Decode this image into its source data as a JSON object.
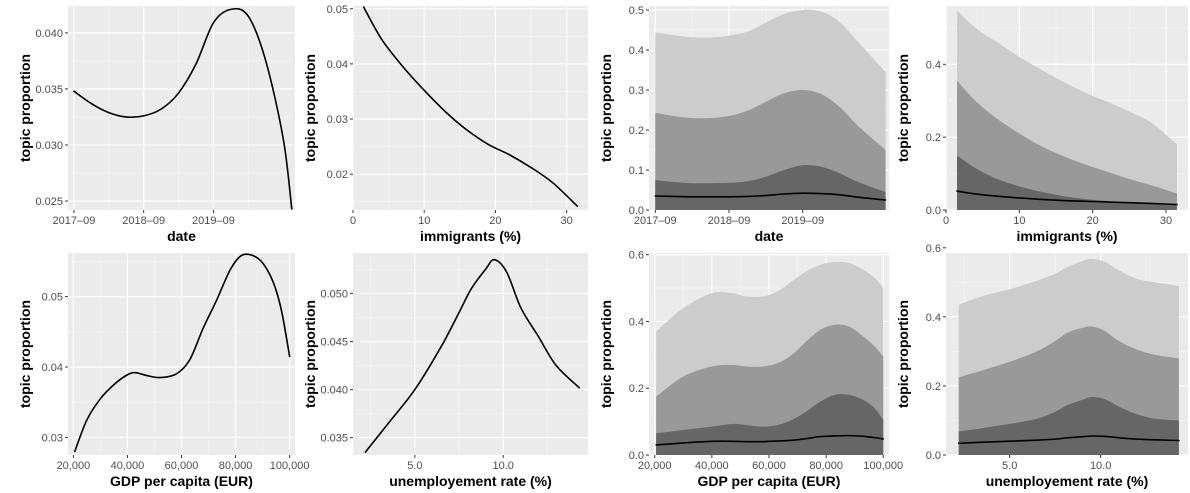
{
  "figure": {
    "panel_background": "#ebebeb",
    "grid_major_color": "#ffffff",
    "grid_minor_color": "#f5f5f5",
    "line_color": "#000000",
    "band_colors": [
      "#cccccc",
      "#999999",
      "#666666"
    ]
  },
  "chart_data": [
    {
      "type": "line",
      "xlabel": "date",
      "ylabel": "topic proportion",
      "x_is_date": true,
      "xlim": [
        "2017-08-01",
        "2020-11-01"
      ],
      "ylim": [
        0.0242,
        0.0424
      ],
      "xticks": [
        "2017-09-01",
        "2018-09-01",
        "2019-09-01"
      ],
      "xtick_labels": [
        "2017–09",
        "2018–09",
        "2019–09"
      ],
      "yticks": [
        0.025,
        0.03,
        0.035,
        0.04
      ],
      "ytick_labels": [
        "0.025",
        "0.030",
        "0.035",
        "0.040"
      ],
      "series": [
        {
          "x": [
            "2017-09-01",
            "2017-12-01",
            "2018-03-01",
            "2018-06-01",
            "2018-09-01",
            "2018-12-01",
            "2019-03-01",
            "2019-06-01",
            "2019-09-01",
            "2019-12-01",
            "2020-03-01",
            "2020-06-01",
            "2020-09-01",
            "2020-10-15"
          ],
          "y": [
            0.0348,
            0.0337,
            0.0329,
            0.0325,
            0.0326,
            0.0332,
            0.0346,
            0.0372,
            0.0409,
            0.0421,
            0.0415,
            0.0375,
            0.0305,
            0.0243
          ]
        }
      ]
    },
    {
      "type": "line",
      "xlabel": "immigrants (%)",
      "ylabel": "topic proportion",
      "xlim": [
        0,
        33
      ],
      "ylim": [
        0.0135,
        0.0505
      ],
      "xticks": [
        0,
        10,
        20,
        30
      ],
      "xtick_labels": [
        "0",
        "10",
        "20",
        "30"
      ],
      "yticks": [
        0.02,
        0.03,
        0.04,
        0.05
      ],
      "ytick_labels": [
        "0.02",
        "0.03",
        "0.04",
        "0.05"
      ],
      "series": [
        {
          "x": [
            1.5,
            4,
            7,
            10,
            13,
            16,
            19,
            22,
            25,
            28,
            31.5
          ],
          "y": [
            0.0503,
            0.0445,
            0.0395,
            0.0352,
            0.0313,
            0.028,
            0.0254,
            0.0235,
            0.0212,
            0.0185,
            0.0142
          ]
        }
      ]
    },
    {
      "type": "area",
      "xlabel": "date",
      "ylabel": "topic proportion",
      "x_is_date": true,
      "xlim": [
        "2017-08-01",
        "2020-11-01"
      ],
      "ylim": [
        0,
        0.51
      ],
      "xticks": [
        "2017-09-01",
        "2018-09-01",
        "2019-09-01"
      ],
      "xtick_labels": [
        "2017–09",
        "2018–09",
        "2019–09"
      ],
      "yticks": [
        0,
        0.1,
        0.2,
        0.3,
        0.4,
        0.5
      ],
      "ytick_labels": [
        "0.0",
        "0.1",
        "0.2",
        "0.3",
        "0.4",
        "0.5"
      ],
      "x": [
        "2017-09-01",
        "2017-12-01",
        "2018-03-01",
        "2018-06-01",
        "2018-09-01",
        "2018-12-01",
        "2019-03-01",
        "2019-06-01",
        "2019-09-01",
        "2019-12-01",
        "2020-03-01",
        "2020-06-01",
        "2020-10-15"
      ],
      "bands": [
        {
          "upper": [
            0.444,
            0.437,
            0.432,
            0.431,
            0.436,
            0.446,
            0.468,
            0.49,
            0.5,
            0.496,
            0.47,
            0.42,
            0.345
          ]
        },
        {
          "upper": [
            0.243,
            0.235,
            0.23,
            0.23,
            0.235,
            0.248,
            0.27,
            0.292,
            0.3,
            0.29,
            0.258,
            0.21,
            0.15
          ]
        },
        {
          "upper": [
            0.075,
            0.07,
            0.067,
            0.067,
            0.068,
            0.072,
            0.083,
            0.1,
            0.112,
            0.108,
            0.092,
            0.07,
            0.045
          ]
        }
      ],
      "series": [
        {
          "y": [
            0.035,
            0.034,
            0.033,
            0.033,
            0.033,
            0.034,
            0.036,
            0.04,
            0.042,
            0.041,
            0.038,
            0.032,
            0.025
          ]
        }
      ]
    },
    {
      "type": "area",
      "xlabel": "immigrants (%)",
      "ylabel": "topic proportion",
      "xlim": [
        0,
        33
      ],
      "ylim": [
        0,
        0.56
      ],
      "xticks": [
        0,
        10,
        20,
        30
      ],
      "xtick_labels": [
        "0",
        "10",
        "20",
        "30"
      ],
      "yticks": [
        0,
        0.2,
        0.4
      ],
      "ytick_labels": [
        "0.0",
        "0.2",
        "0.4"
      ],
      "x": [
        1.5,
        4,
        7,
        10,
        13,
        16,
        19,
        22,
        25,
        28,
        31.5
      ],
      "bands": [
        {
          "upper": [
            0.548,
            0.5,
            0.46,
            0.42,
            0.385,
            0.352,
            0.322,
            0.297,
            0.27,
            0.24,
            0.18
          ]
        },
        {
          "upper": [
            0.355,
            0.3,
            0.25,
            0.21,
            0.175,
            0.148,
            0.125,
            0.105,
            0.085,
            0.068,
            0.045
          ]
        },
        {
          "upper": [
            0.15,
            0.115,
            0.085,
            0.065,
            0.05,
            0.038,
            0.03,
            0.025,
            0.02,
            0.016,
            0.012
          ]
        }
      ],
      "series": [
        {
          "y": [
            0.052,
            0.044,
            0.038,
            0.033,
            0.029,
            0.026,
            0.024,
            0.022,
            0.02,
            0.018,
            0.015
          ]
        }
      ]
    },
    {
      "type": "line",
      "xlabel": "GDP per capita (EUR)",
      "ylabel": "topic proportion",
      "xlim": [
        18000,
        102000
      ],
      "ylim": [
        0.0275,
        0.0562
      ],
      "xticks": [
        20000,
        40000,
        60000,
        80000,
        100000
      ],
      "xtick_labels": [
        "20,000",
        "40,000",
        "60,000",
        "80,000",
        "100,000"
      ],
      "yticks": [
        0.03,
        0.04,
        0.05
      ],
      "ytick_labels": [
        "0.03",
        "0.04",
        "0.05"
      ],
      "series": [
        {
          "x": [
            20500,
            25000,
            30000,
            35000,
            40000,
            43000,
            47000,
            52000,
            58000,
            63000,
            68000,
            73000,
            78000,
            82000,
            86000,
            90000,
            94000,
            97000,
            100000
          ],
          "y": [
            0.028,
            0.0325,
            0.0355,
            0.0375,
            0.0389,
            0.0392,
            0.0388,
            0.0385,
            0.039,
            0.041,
            0.0455,
            0.0495,
            0.0538,
            0.0558,
            0.0559,
            0.0548,
            0.052,
            0.048,
            0.0415
          ]
        }
      ]
    },
    {
      "type": "line",
      "xlabel": "unemployement rate (%)",
      "ylabel": "topic proportion",
      "xlim": [
        1.5,
        14.8
      ],
      "ylim": [
        0.0332,
        0.0542
      ],
      "xticks": [
        5,
        10
      ],
      "xtick_labels": [
        "5.0",
        "10.0"
      ],
      "yticks": [
        0.035,
        0.04,
        0.045,
        0.05
      ],
      "ytick_labels": [
        "0.035",
        "0.040",
        "0.045",
        "0.050"
      ],
      "series": [
        {
          "x": [
            2.2,
            3.5,
            5,
            6.5,
            7.5,
            8.2,
            9,
            9.5,
            10.2,
            11,
            12,
            13,
            14.3
          ],
          "y": [
            0.0335,
            0.0365,
            0.04,
            0.0445,
            0.048,
            0.0505,
            0.0525,
            0.0535,
            0.0522,
            0.0485,
            0.0455,
            0.0425,
            0.0402
          ]
        }
      ]
    },
    {
      "type": "area",
      "xlabel": "GDP per capita (EUR)",
      "ylabel": "topic proportion",
      "xlim": [
        18000,
        102000
      ],
      "ylim": [
        0,
        0.605
      ],
      "xticks": [
        20000,
        40000,
        60000,
        80000,
        100000
      ],
      "xtick_labels": [
        "20,000",
        "40,000",
        "60,000",
        "80,000",
        "100,000"
      ],
      "yticks": [
        0,
        0.2,
        0.4,
        0.6
      ],
      "ytick_labels": [
        "0.0",
        "0.2",
        "0.4",
        "0.6"
      ],
      "x": [
        20500,
        30000,
        40000,
        47000,
        52000,
        58000,
        63000,
        68000,
        73000,
        78000,
        83000,
        88000,
        93000,
        97000,
        100000
      ],
      "bands": [
        {
          "upper": [
            0.37,
            0.44,
            0.485,
            0.485,
            0.475,
            0.475,
            0.49,
            0.52,
            0.55,
            0.57,
            0.578,
            0.575,
            0.555,
            0.53,
            0.5
          ]
        },
        {
          "upper": [
            0.175,
            0.235,
            0.265,
            0.27,
            0.265,
            0.265,
            0.275,
            0.3,
            0.34,
            0.375,
            0.39,
            0.385,
            0.355,
            0.325,
            0.295
          ]
        },
        {
          "upper": [
            0.065,
            0.075,
            0.085,
            0.093,
            0.09,
            0.085,
            0.09,
            0.105,
            0.13,
            0.16,
            0.18,
            0.18,
            0.165,
            0.14,
            0.105
          ]
        }
      ],
      "series": [
        {
          "y": [
            0.03,
            0.036,
            0.041,
            0.041,
            0.04,
            0.04,
            0.042,
            0.044,
            0.049,
            0.055,
            0.057,
            0.058,
            0.056,
            0.052,
            0.048
          ]
        }
      ]
    },
    {
      "type": "area",
      "xlabel": "unemployement rate (%)",
      "ylabel": "topic proportion",
      "xlim": [
        1.5,
        14.8
      ],
      "ylim": [
        0,
        0.585
      ],
      "xticks": [
        5,
        10
      ],
      "xtick_labels": [
        "5.0",
        "10.0"
      ],
      "yticks": [
        0,
        0.2,
        0.4,
        0.6
      ],
      "ytick_labels": [
        "0.0",
        "0.2",
        "0.4",
        "0.6"
      ],
      "x": [
        2.2,
        3.5,
        5,
        6.5,
        7.5,
        8.2,
        9,
        9.5,
        10.2,
        11,
        12,
        13,
        14.3
      ],
      "bands": [
        {
          "upper": [
            0.435,
            0.46,
            0.48,
            0.505,
            0.525,
            0.545,
            0.562,
            0.568,
            0.56,
            0.535,
            0.51,
            0.5,
            0.49
          ]
        },
        {
          "upper": [
            0.225,
            0.245,
            0.27,
            0.3,
            0.33,
            0.355,
            0.368,
            0.372,
            0.36,
            0.33,
            0.305,
            0.29,
            0.28
          ]
        },
        {
          "upper": [
            0.068,
            0.078,
            0.09,
            0.105,
            0.125,
            0.145,
            0.16,
            0.168,
            0.162,
            0.14,
            0.118,
            0.105,
            0.1
          ]
        }
      ],
      "series": [
        {
          "y": [
            0.034,
            0.037,
            0.04,
            0.043,
            0.046,
            0.05,
            0.053,
            0.055,
            0.054,
            0.05,
            0.046,
            0.044,
            0.042
          ]
        }
      ]
    }
  ]
}
